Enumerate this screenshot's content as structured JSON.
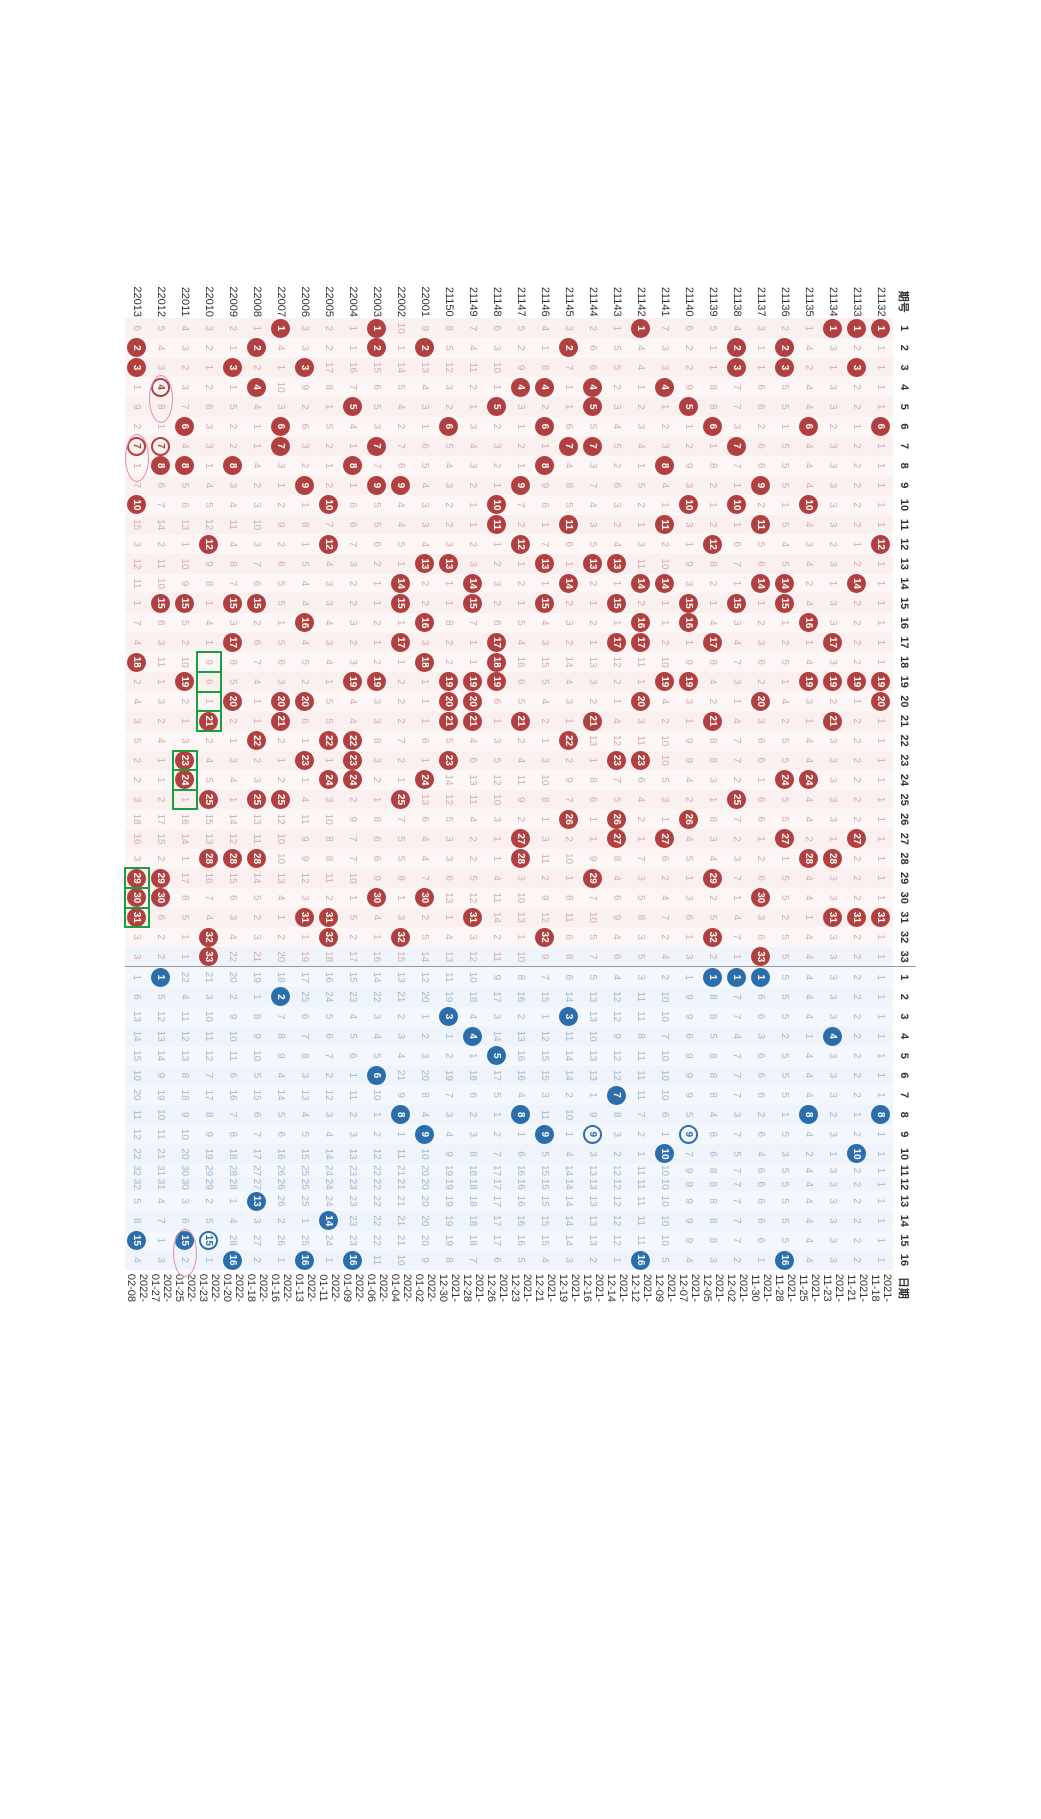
{
  "headers": {
    "period": "期号",
    "date": "日期"
  },
  "red_max": 33,
  "blue_max": 16,
  "rows": [
    {
      "p": "21132",
      "d": "2021-11-18",
      "r": [
        1,
        6,
        12,
        19,
        20,
        31
      ],
      "b": 8
    },
    {
      "p": "21133",
      "d": "2021-11-21",
      "r": [
        1,
        3,
        14,
        19,
        27,
        31
      ],
      "b": 10
    },
    {
      "p": "21134",
      "d": "2021-11-23",
      "r": [
        1,
        17,
        19,
        21,
        28,
        31
      ],
      "b": 4
    },
    {
      "p": "21135",
      "d": "2021-11-25",
      "r": [
        6,
        10,
        16,
        19,
        24,
        28
      ],
      "b": 8
    },
    {
      "p": "21136",
      "d": "2021-11-28",
      "r": [
        2,
        3,
        14,
        15,
        24,
        27
      ],
      "b": 16
    },
    {
      "p": "21137",
      "d": "2021-11-30",
      "r": [
        9,
        11,
        14,
        20,
        30,
        33
      ],
      "b": 1
    },
    {
      "p": "21138",
      "d": "2021-12-02",
      "r": [
        2,
        3,
        7,
        10,
        15,
        25
      ],
      "b": 1
    },
    {
      "p": "21139",
      "d": "2021-12-05",
      "r": [
        6,
        12,
        17,
        21,
        29,
        32
      ],
      "b": 1
    },
    {
      "p": "21140",
      "d": "2021-12-07",
      "r": [
        5,
        10,
        15,
        16,
        19,
        26
      ],
      "b": 9,
      "ring_b": true
    },
    {
      "p": "21141",
      "d": "2021-12-09",
      "r": [
        4,
        8,
        11,
        14,
        19,
        27
      ],
      "b": 10
    },
    {
      "p": "21142",
      "d": "2021-12-12",
      "r": [
        1,
        14,
        16,
        17,
        20,
        23
      ],
      "b": 16
    },
    {
      "p": "21143",
      "d": "2021-12-14",
      "r": [
        13,
        15,
        17,
        23,
        26,
        27
      ],
      "b": 7
    },
    {
      "p": "21144",
      "d": "2021-12-16",
      "r": [
        4,
        5,
        7,
        13,
        21,
        29
      ],
      "b": 9,
      "ring_b": true
    },
    {
      "p": "21145",
      "d": "2021-12-19",
      "r": [
        2,
        7,
        11,
        14,
        22,
        26
      ],
      "b": 3
    },
    {
      "p": "21146",
      "d": "2021-12-21",
      "r": [
        4,
        6,
        8,
        13,
        15,
        32
      ],
      "b": 9
    },
    {
      "p": "21147",
      "d": "2021-12-23",
      "r": [
        4,
        9,
        12,
        21,
        27,
        28
      ],
      "b": 8
    },
    {
      "p": "21148",
      "d": "2021-12-26",
      "r": [
        5,
        10,
        11,
        17,
        18,
        19
      ],
      "b": 5
    },
    {
      "p": "21149",
      "d": "2021-12-28",
      "r": [
        14,
        15,
        19,
        20,
        21,
        31
      ],
      "b": 4
    },
    {
      "p": "21150",
      "d": "2021-12-30",
      "r": [
        6,
        13,
        19,
        20,
        21,
        23
      ],
      "b": 3
    },
    {
      "p": "22001",
      "d": "2022-01-02",
      "r": [
        2,
        13,
        16,
        18,
        24,
        30
      ],
      "b": 9
    },
    {
      "p": "22002",
      "d": "2022-01-04",
      "r": [
        9,
        14,
        15,
        17,
        25,
        32
      ],
      "b": 8
    },
    {
      "p": "22003",
      "d": "2022-01-06",
      "r": [
        1,
        2,
        7,
        9,
        19,
        30
      ],
      "b": 6
    },
    {
      "p": "22004",
      "d": "2022-01-09",
      "r": [
        5,
        8,
        19,
        22,
        23,
        24
      ],
      "b": 16
    },
    {
      "p": "22005",
      "d": "2022-01-11",
      "r": [
        10,
        12,
        22,
        24,
        31,
        32
      ],
      "b": 14
    },
    {
      "p": "22006",
      "d": "2022-01-13",
      "r": [
        3,
        9,
        16,
        20,
        23,
        31
      ],
      "b": 16
    },
    {
      "p": "22007",
      "d": "2022-01-16",
      "r": [
        1,
        6,
        7,
        20,
        21,
        25
      ],
      "b": 2
    },
    {
      "p": "22008",
      "d": "2022-01-18",
      "r": [
        2,
        4,
        15,
        22,
        25,
        28
      ],
      "b": 13
    },
    {
      "p": "22009",
      "d": "2022-01-20",
      "r": [
        3,
        8,
        15,
        17,
        20,
        28
      ],
      "b": 16
    },
    {
      "p": "22010",
      "d": "2022-01-23",
      "r": [
        12,
        21,
        25,
        28,
        32,
        33
      ],
      "b": 15,
      "ring_b": true
    },
    {
      "p": "22011",
      "d": "2022-01-25",
      "r": [
        6,
        8,
        15,
        19,
        23,
        24
      ],
      "b": 15
    },
    {
      "p": "22012",
      "d": "2022-01-27",
      "r": [
        4,
        7,
        8,
        15,
        29,
        30
      ],
      "b": 1,
      "ring": [
        4,
        7
      ]
    },
    {
      "p": "22013",
      "d": "2022-02-08",
      "r": [
        2,
        3,
        10,
        18,
        29,
        30,
        31,
        7
      ],
      "b": 15,
      "ring": [
        7
      ],
      "green": [
        [
          29,
          31
        ]
      ],
      "lastrow": true
    }
  ],
  "green_boxes": {
    "22010": [
      [
        18,
        21
      ]
    ],
    "22011": [
      [
        23,
        25
      ]
    ],
    "22013": [
      [
        29,
        31
      ]
    ]
  },
  "pink_ovals": {
    "22012": {
      "red": [
        4
      ],
      "blue": []
    },
    "22011": {
      "blue": [
        15
      ]
    },
    "22013": {
      "red": [
        7
      ]
    }
  },
  "colors": {
    "red_ball": "#b14141",
    "blue_ball": "#2c6eab",
    "red_bg": "#fdf6f6",
    "blue_bg": "#f4f8fc",
    "red_txt": "#d8a8a8",
    "blue_txt": "#9db8d4",
    "green": "#1a9e3e",
    "pink": "#e589b0"
  }
}
